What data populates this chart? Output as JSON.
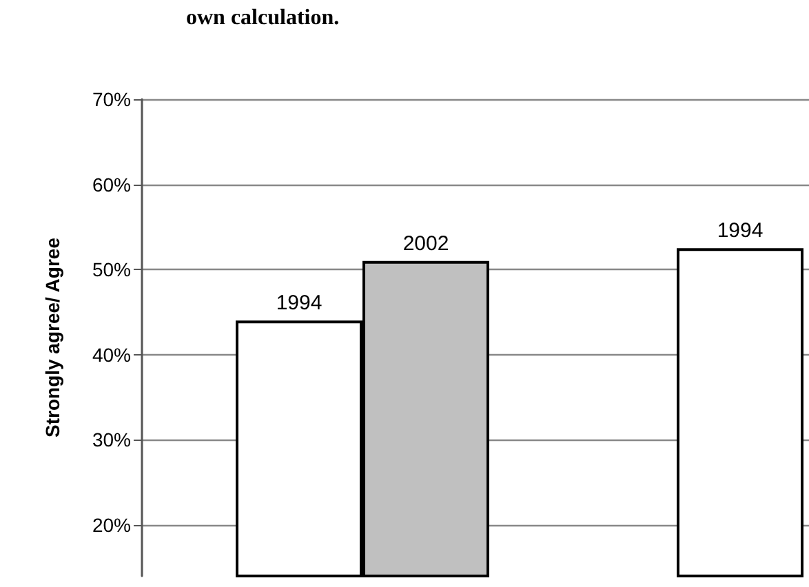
{
  "chart_data": {
    "type": "bar",
    "title": "own calculation.",
    "ylabel": "Strongly agree/ Agree",
    "categories": [
      null,
      null
    ],
    "series": [
      {
        "name": "1994",
        "color": "#ffffff",
        "values": [
          44,
          52.5
        ]
      },
      {
        "name": "2002",
        "color": "#c0c0c0",
        "values": [
          51,
          null
        ]
      }
    ],
    "ylim": [
      14,
      70
    ],
    "yticks": [
      {
        "value": 20,
        "label": "20%"
      },
      {
        "value": 30,
        "label": "30%"
      },
      {
        "value": 40,
        "label": "40%"
      },
      {
        "value": 50,
        "label": "50%"
      },
      {
        "value": 60,
        "label": "60%"
      },
      {
        "value": 70,
        "label": "70%"
      }
    ],
    "grid": "y",
    "legend": false
  }
}
